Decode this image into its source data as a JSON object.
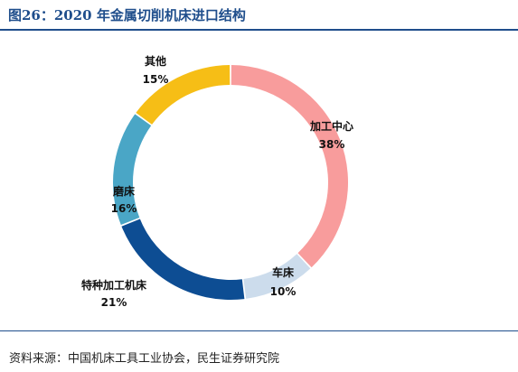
{
  "title": "图26：2020 年金属切削机床进口结构",
  "source": "资料来源：中国机床工具工业协会，民生证券研究院",
  "chart_data": {
    "type": "pie",
    "variant": "donut",
    "categories": [
      "加工中心",
      "车床",
      "特种加工机床",
      "磨床",
      "其他"
    ],
    "values": [
      38,
      10,
      21,
      16,
      15
    ],
    "value_labels": [
      "38%",
      "10%",
      "21%",
      "16%",
      "15%"
    ],
    "colors": [
      "#f89c9c",
      "#ccdcec",
      "#0d4d93",
      "#4aa6c6",
      "#f6be16"
    ],
    "start_angle_deg": 0,
    "direction": "clockwise",
    "legend": "none"
  }
}
